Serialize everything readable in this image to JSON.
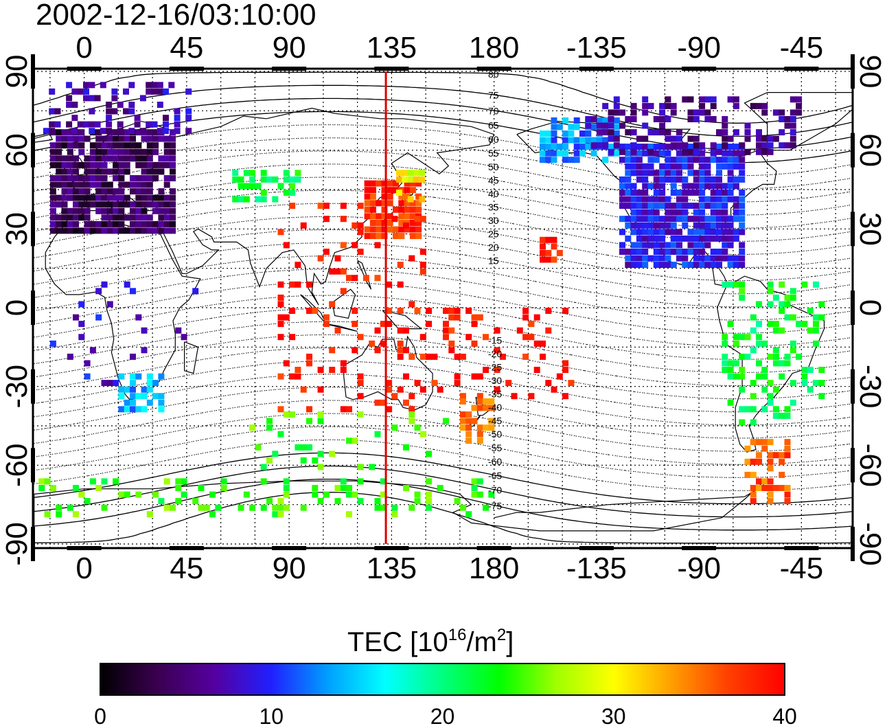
{
  "title": "2002-12-16/03:10:00",
  "map": {
    "x_ticks": [
      "0",
      "45",
      "90",
      "135",
      "180",
      "-135",
      "-90",
      "-45"
    ],
    "y_ticks": [
      "90",
      "60",
      "30",
      "0",
      "-30",
      "-60",
      "-90"
    ],
    "meridian_longitude": 132.5,
    "meridian_color": "#e00000",
    "mag_lat_labels_north": [
      "80",
      "75",
      "70",
      "65",
      "60",
      "55",
      "50",
      "45",
      "40",
      "35",
      "30",
      "25",
      "20",
      "15"
    ],
    "mag_lat_labels_south": [
      "-15",
      "-20",
      "-25",
      "-30",
      "-35",
      "-40",
      "-45",
      "-50",
      "-55",
      "-60",
      "-65",
      "-70",
      "-75"
    ]
  },
  "colorbar": {
    "title": "TEC  [10",
    "title_exp": "16",
    "title_mid": "/m",
    "title_exp2": "2",
    "title_end": "]",
    "ticks": [
      "0",
      "10",
      "20",
      "30",
      "40"
    ],
    "colors": [
      "#000000",
      "#3a0050",
      "#5500a0",
      "#2020ff",
      "#00a0ff",
      "#00ffff",
      "#00ff80",
      "#00ff00",
      "#a0ff00",
      "#ffff00",
      "#ffa000",
      "#ff4000",
      "#ff0000"
    ]
  },
  "tec_regions": [
    {
      "name": "europe",
      "lon": [
        -15,
        40
      ],
      "lat": [
        28,
        68
      ],
      "value": 4,
      "density": 0.85
    },
    {
      "name": "north-europe-scatter",
      "lon": [
        -18,
        45
      ],
      "lat": [
        66,
        85
      ],
      "value": 7,
      "density": 0.3
    },
    {
      "name": "middle-east",
      "lon": [
        65,
        95
      ],
      "lat": [
        40,
        52
      ],
      "value": 22,
      "density": 0.55
    },
    {
      "name": "japan",
      "lon": [
        123,
        147
      ],
      "lat": [
        26,
        48
      ],
      "value": 38,
      "density": 0.85
    },
    {
      "name": "japan-north",
      "lon": [
        137,
        148
      ],
      "lat": [
        40,
        52
      ],
      "value": 30,
      "density": 0.6
    },
    {
      "name": "east-asia-red",
      "lon": [
        85,
        150
      ],
      "lat": [
        -40,
        40
      ],
      "value": 39,
      "density": 0.12
    },
    {
      "name": "pacific-red",
      "lon": [
        150,
        215
      ],
      "lat": [
        -35,
        0
      ],
      "value": 39,
      "density": 0.18
    },
    {
      "name": "new-zealand",
      "lon": [
        165,
        178
      ],
      "lat": [
        -52,
        -35
      ],
      "value": 34,
      "density": 0.55
    },
    {
      "name": "hawaii",
      "lon": [
        200,
        210
      ],
      "lat": [
        17,
        25
      ],
      "value": 39,
      "density": 0.7
    },
    {
      "name": "north-america",
      "lon": [
        235,
        290
      ],
      "lat": [
        15,
        62
      ],
      "value": 9,
      "density": 0.85
    },
    {
      "name": "alaska",
      "lon": [
        200,
        235
      ],
      "lat": [
        55,
        72
      ],
      "value": 13,
      "density": 0.7
    },
    {
      "name": "canada-arctic",
      "lon": [
        220,
        315
      ],
      "lat": [
        58,
        80
      ],
      "value": 6,
      "density": 0.35
    },
    {
      "name": "south-america",
      "lon": [
        280,
        325
      ],
      "lat": [
        -45,
        10
      ],
      "value": 22,
      "density": 0.25
    },
    {
      "name": "patagonia",
      "lon": [
        290,
        310
      ],
      "lat": [
        -75,
        -50
      ],
      "value": 36,
      "density": 0.5
    },
    {
      "name": "antarctic-ring",
      "lon": [
        -20,
        180
      ],
      "lat": [
        -80,
        -65
      ],
      "value": 24,
      "density": 0.18
    },
    {
      "name": "south-africa",
      "lon": [
        15,
        35
      ],
      "lat": [
        -40,
        -25
      ],
      "value": 14,
      "density": 0.5
    },
    {
      "name": "africa",
      "lon": [
        -15,
        50
      ],
      "lat": [
        -30,
        10
      ],
      "value": 8,
      "density": 0.06
    },
    {
      "name": "southern-ocean",
      "lon": [
        60,
        160
      ],
      "lat": [
        -62,
        -40
      ],
      "value": 24,
      "density": 0.07
    }
  ]
}
